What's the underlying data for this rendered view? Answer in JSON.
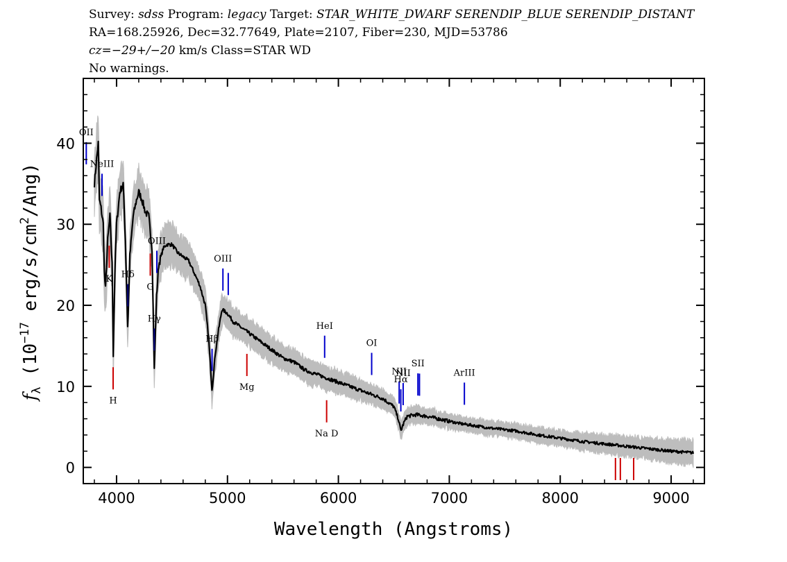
{
  "header": {
    "line1": {
      "survey_label": "Survey:",
      "survey": "sdss",
      "program_label": "Program:",
      "program": "legacy",
      "target_label": "Target:",
      "target": "STAR_WHITE_DWARF SERENDIP_BLUE SERENDIP_DISTANT"
    },
    "line2": "RA=168.25926, Dec=32.77649, Plate=2107, Fiber=230, MJD=53786",
    "line3": {
      "cz_label": "cz",
      "cz_sep": "=",
      "cz_value": "−29+/−20",
      "cz_rest": " km/s Class=STAR WD"
    },
    "line4": "No warnings."
  },
  "chart_data": {
    "type": "line",
    "xlabel": "Wavelength (Angstroms)",
    "ylabel": "f_λ (10^-17 erg/s/cm^2/Ang)",
    "xlim": [
      3700,
      9300
    ],
    "ylim": [
      -2,
      48
    ],
    "xticks": [
      4000,
      5000,
      6000,
      7000,
      8000,
      9000
    ],
    "yticks": [
      0,
      10,
      20,
      30,
      40
    ],
    "series": [
      {
        "style": "flux",
        "color": "#000000",
        "points": [
          [
            3800,
            35
          ],
          [
            3820,
            38
          ],
          [
            3835,
            40
          ],
          [
            3845,
            33
          ],
          [
            3860,
            32
          ],
          [
            3880,
            30
          ],
          [
            3890,
            24
          ],
          [
            3900,
            22
          ],
          [
            3920,
            28
          ],
          [
            3940,
            31
          ],
          [
            3960,
            25
          ],
          [
            3970,
            14
          ],
          [
            3985,
            24
          ],
          [
            4000,
            30
          ],
          [
            4030,
            34
          ],
          [
            4060,
            35
          ],
          [
            4080,
            28
          ],
          [
            4101,
            17
          ],
          [
            4120,
            26
          ],
          [
            4150,
            31
          ],
          [
            4180,
            33
          ],
          [
            4200,
            34
          ],
          [
            4230,
            33
          ],
          [
            4260,
            31.5
          ],
          [
            4290,
            31
          ],
          [
            4320,
            27
          ],
          [
            4340,
            12
          ],
          [
            4360,
            21
          ],
          [
            4380,
            25
          ],
          [
            4400,
            26
          ],
          [
            4420,
            27
          ],
          [
            4450,
            27.5
          ],
          [
            4500,
            27.5
          ],
          [
            4550,
            26.5
          ],
          [
            4600,
            26
          ],
          [
            4650,
            25.5
          ],
          [
            4700,
            24
          ],
          [
            4750,
            22.5
          ],
          [
            4800,
            20
          ],
          [
            4830,
            16
          ],
          [
            4861,
            9.5
          ],
          [
            4890,
            14
          ],
          [
            4920,
            17
          ],
          [
            4950,
            19.5
          ],
          [
            5000,
            19
          ],
          [
            5050,
            18
          ],
          [
            5100,
            17.5
          ],
          [
            5200,
            16.5
          ],
          [
            5300,
            15.5
          ],
          [
            5400,
            14.5
          ],
          [
            5500,
            13.5
          ],
          [
            5600,
            13
          ],
          [
            5700,
            12
          ],
          [
            5800,
            11.5
          ],
          [
            5900,
            11
          ],
          [
            6000,
            10.5
          ],
          [
            6100,
            10
          ],
          [
            6200,
            9.5
          ],
          [
            6300,
            9
          ],
          [
            6400,
            8.5
          ],
          [
            6500,
            7.5
          ],
          [
            6540,
            6
          ],
          [
            6563,
            4.5
          ],
          [
            6590,
            5.5
          ],
          [
            6620,
            6.3
          ],
          [
            6700,
            6.5
          ],
          [
            6800,
            6.3
          ],
          [
            6900,
            6
          ],
          [
            7000,
            5.7
          ],
          [
            7100,
            5.4
          ],
          [
            7200,
            5.2
          ],
          [
            7400,
            4.8
          ],
          [
            7600,
            4.5
          ],
          [
            7800,
            4
          ],
          [
            8000,
            3.6
          ],
          [
            8200,
            3.2
          ],
          [
            8400,
            2.9
          ],
          [
            8600,
            2.6
          ],
          [
            8800,
            2.3
          ],
          [
            9000,
            2
          ],
          [
            9200,
            1.8
          ]
        ]
      },
      {
        "style": "error-band",
        "color": "#bdbdbd",
        "points": [
          [
            3800,
            3.5
          ],
          [
            4000,
            3
          ],
          [
            4400,
            2.5
          ],
          [
            5000,
            1.6
          ],
          [
            6000,
            1.3
          ],
          [
            7000,
            0.8
          ],
          [
            8000,
            0.9
          ],
          [
            9000,
            1.3
          ],
          [
            9200,
            1.5
          ]
        ]
      }
    ],
    "emission_lines": [
      {
        "label": "OII",
        "x": 3727,
        "color": "#0000cc"
      },
      {
        "label": "NeIII",
        "x": 3869,
        "color": "#0000cc"
      },
      {
        "label": "Hδ",
        "x": 4102,
        "color": "#000080"
      },
      {
        "label": "Hγ",
        "x": 4340,
        "color": "#000080"
      },
      {
        "label": "OIII",
        "x": 4363,
        "color": "#0000cc"
      },
      {
        "label": "Hβ",
        "x": 4861,
        "color": "#0000cc"
      },
      {
        "label": "OIII",
        "x": 4959,
        "color": "#0000cc"
      },
      {
        "label": "",
        "x": 5007,
        "color": "#0000cc"
      },
      {
        "label": "HeI",
        "x": 5876,
        "color": "#0000cc"
      },
      {
        "label": "OI",
        "x": 6300,
        "color": "#0000cc"
      },
      {
        "label": "NII",
        "x": 6548,
        "color": "#0000cc"
      },
      {
        "label": "Hα",
        "x": 6563,
        "color": "#0000cc"
      },
      {
        "label": "NII",
        "x": 6584,
        "color": "#0000cc"
      },
      {
        "label": "SII",
        "x": 6717,
        "color": "#0000cc"
      },
      {
        "label": "",
        "x": 6731,
        "color": "#0000cc"
      },
      {
        "label": "ArIII",
        "x": 7136,
        "color": "#0000cc"
      }
    ],
    "absorption_lines": [
      {
        "label": "K",
        "x": 3934,
        "color": "#cc0000"
      },
      {
        "label": "H",
        "x": 3969,
        "color": "#cc0000"
      },
      {
        "label": "G",
        "x": 4304,
        "color": "#cc0000"
      },
      {
        "label": "Mg",
        "x": 5175,
        "color": "#cc0000"
      },
      {
        "label": "Na D",
        "x": 5894,
        "color": "#cc0000"
      },
      {
        "label": "",
        "x": 8498,
        "color": "#cc0000"
      },
      {
        "label": "",
        "x": 8542,
        "color": "#cc0000"
      },
      {
        "label": "",
        "x": 8662,
        "color": "#cc0000"
      }
    ]
  }
}
